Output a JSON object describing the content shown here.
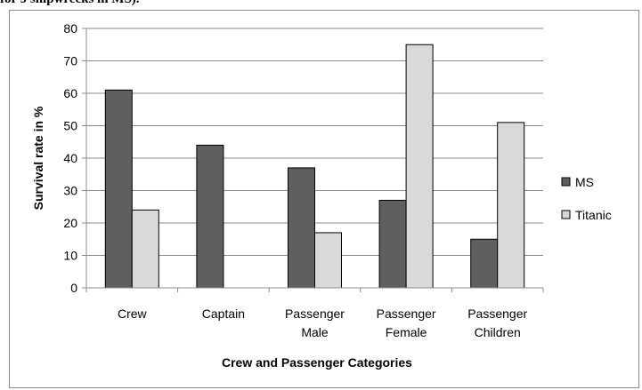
{
  "page": {
    "top_fragment": "for 9 shipwrecks in MS)."
  },
  "chart_data": {
    "type": "bar",
    "categories": [
      "Crew",
      "Captain",
      "Passenger Male",
      "Passenger Female",
      "Passenger Children"
    ],
    "category_lines": [
      [
        "Crew"
      ],
      [
        "Captain"
      ],
      [
        "Passenger",
        "Male"
      ],
      [
        "Passenger",
        "Female"
      ],
      [
        "Passenger",
        "Children"
      ]
    ],
    "series": [
      {
        "name": "MS",
        "values": [
          61,
          44,
          37,
          27,
          15
        ],
        "color": "#5f5f5f"
      },
      {
        "name": "Titanic",
        "values": [
          24,
          0,
          17,
          75,
          51
        ],
        "color": "#d9d9d9"
      }
    ],
    "ylabel": "Survival rate in %",
    "xlabel": "Crew and Passenger Categories",
    "ylim": [
      0,
      80
    ],
    "yticks": [
      0,
      10,
      20,
      30,
      40,
      50,
      60,
      70,
      80
    ],
    "grid": true,
    "legend_position": "right"
  }
}
